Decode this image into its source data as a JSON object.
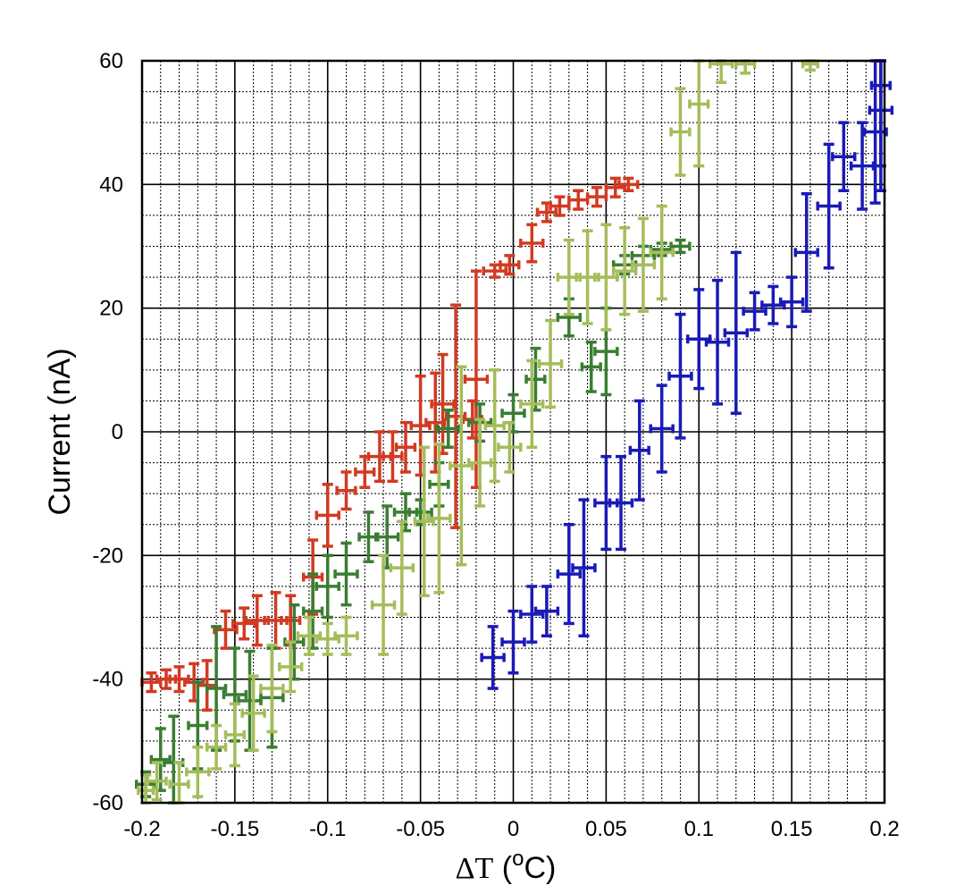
{
  "chart_data": {
    "type": "scatter",
    "title": "",
    "xlabel": {
      "delta": "ΔT",
      "open": " (",
      "sup": "o",
      "unit": "C)"
    },
    "ylabel": "Current (nA)",
    "xlim": [
      -0.2,
      0.2
    ],
    "ylim": [
      -60,
      60
    ],
    "x_ticks": [
      -0.2,
      -0.15,
      -0.1,
      -0.05,
      0,
      0.05,
      0.1,
      0.15,
      0.2
    ],
    "x_tick_labels": [
      "-0.2",
      "-0.15",
      "-0.1",
      "-0.05",
      "0",
      "0.05",
      "0.1",
      "0.15",
      "0.2"
    ],
    "y_ticks": [
      -60,
      -40,
      -20,
      0,
      20,
      40,
      60
    ],
    "y_tick_labels": [
      "-60",
      "-40",
      "-20",
      "0",
      "20",
      "40",
      "60"
    ],
    "grid": {
      "major": true,
      "minor": true,
      "minor_x_step": 0.01,
      "minor_y_step": 5
    },
    "legend": "none",
    "series": [
      {
        "color": "#d23a22",
        "points": [
          {
            "x": -0.195,
            "y": -40.5,
            "xerr": 0.005,
            "yerr": 1.5
          },
          {
            "x": -0.187,
            "y": -40.0,
            "xerr": 0.005,
            "yerr": 1.5
          },
          {
            "x": -0.18,
            "y": -40.0,
            "xerr": 0.005,
            "yerr": 2.0
          },
          {
            "x": -0.172,
            "y": -40.5,
            "xerr": 0.005,
            "yerr": 3.0
          },
          {
            "x": -0.165,
            "y": -41.0,
            "xerr": 0.005,
            "yerr": 4.0
          },
          {
            "x": -0.155,
            "y": -32.0,
            "xerr": 0.006,
            "yerr": 3.0
          },
          {
            "x": -0.145,
            "y": -31.0,
            "xerr": 0.006,
            "yerr": 2.5
          },
          {
            "x": -0.138,
            "y": -30.5,
            "xerr": 0.006,
            "yerr": 4.0
          },
          {
            "x": -0.128,
            "y": -30.5,
            "xerr": 0.006,
            "yerr": 4.5
          },
          {
            "x": -0.12,
            "y": -30.5,
            "xerr": 0.005,
            "yerr": 4.0
          },
          {
            "x": -0.108,
            "y": -23.5,
            "xerr": 0.005,
            "yerr": 6.0
          },
          {
            "x": -0.1,
            "y": -13.5,
            "xerr": 0.006,
            "yerr": 5.0
          },
          {
            "x": -0.09,
            "y": -9.5,
            "xerr": 0.005,
            "yerr": 3.0
          },
          {
            "x": -0.08,
            "y": -6.5,
            "xerr": 0.005,
            "yerr": 2.5
          },
          {
            "x": -0.072,
            "y": -4.0,
            "xerr": 0.006,
            "yerr": 4.0
          },
          {
            "x": -0.065,
            "y": -4.0,
            "xerr": 0.005,
            "yerr": 4.0
          },
          {
            "x": -0.058,
            "y": -2.5,
            "xerr": 0.005,
            "yerr": 4.0
          },
          {
            "x": -0.05,
            "y": 1.0,
            "xerr": 0.005,
            "yerr": 8.0
          },
          {
            "x": -0.042,
            "y": 1.5,
            "xerr": 0.005,
            "yerr": 8.0
          },
          {
            "x": -0.038,
            "y": 4.5,
            "xerr": 0.006,
            "yerr": 8.0
          },
          {
            "x": -0.031,
            "y": 2.5,
            "xerr": 0.005,
            "yerr": 18.0
          },
          {
            "x": -0.022,
            "y": 2.0,
            "xerr": 0.005,
            "yerr": 3.0
          },
          {
            "x": -0.02,
            "y": 8.5,
            "xerr": 0.006,
            "yerr": 17.5
          },
          {
            "x": -0.01,
            "y": 26.0,
            "xerr": 0.006,
            "yerr": 1.0
          },
          {
            "x": -0.002,
            "y": 27.0,
            "xerr": 0.005,
            "yerr": 1.5
          },
          {
            "x": 0.01,
            "y": 30.5,
            "xerr": 0.006,
            "yerr": 3.0
          },
          {
            "x": 0.018,
            "y": 35.5,
            "xerr": 0.005,
            "yerr": 1.5
          },
          {
            "x": 0.025,
            "y": 36.5,
            "xerr": 0.005,
            "yerr": 1.5
          },
          {
            "x": 0.035,
            "y": 37.5,
            "xerr": 0.005,
            "yerr": 1.5
          },
          {
            "x": 0.045,
            "y": 38.0,
            "xerr": 0.005,
            "yerr": 1.5
          },
          {
            "x": 0.055,
            "y": 39.5,
            "xerr": 0.005,
            "yerr": 1.5
          },
          {
            "x": 0.062,
            "y": 40.0,
            "xerr": 0.005,
            "yerr": 1.0
          }
        ]
      },
      {
        "color": "#3b7d32",
        "points": [
          {
            "x": -0.198,
            "y": -57.0,
            "xerr": 0.005,
            "yerr": 2.0
          },
          {
            "x": -0.19,
            "y": -53.0,
            "xerr": 0.005,
            "yerr": 5.0
          },
          {
            "x": -0.183,
            "y": -53.5,
            "xerr": 0.005,
            "yerr": 7.5
          },
          {
            "x": -0.17,
            "y": -47.5,
            "xerr": 0.005,
            "yerr": 7.0
          },
          {
            "x": -0.16,
            "y": -41.5,
            "xerr": 0.005,
            "yerr": 10.0
          },
          {
            "x": -0.15,
            "y": -42.5,
            "xerr": 0.006,
            "yerr": 7.5
          },
          {
            "x": -0.142,
            "y": -43.5,
            "xerr": 0.006,
            "yerr": 8.0
          },
          {
            "x": -0.13,
            "y": -43.0,
            "xerr": 0.006,
            "yerr": 8.0
          },
          {
            "x": -0.118,
            "y": -34.0,
            "xerr": 0.005,
            "yerr": 6.0
          },
          {
            "x": -0.108,
            "y": -29.0,
            "xerr": 0.005,
            "yerr": 6.0
          },
          {
            "x": -0.1,
            "y": -25.0,
            "xerr": 0.006,
            "yerr": 5.0
          },
          {
            "x": -0.09,
            "y": -23.0,
            "xerr": 0.006,
            "yerr": 5.0
          },
          {
            "x": -0.078,
            "y": -17.0,
            "xerr": 0.005,
            "yerr": 4.0
          },
          {
            "x": -0.068,
            "y": -17.0,
            "xerr": 0.006,
            "yerr": 5.0
          },
          {
            "x": -0.058,
            "y": -13.0,
            "xerr": 0.006,
            "yerr": 3.0
          },
          {
            "x": -0.05,
            "y": -13.0,
            "xerr": 0.006,
            "yerr": 2.0
          },
          {
            "x": -0.04,
            "y": -8.5,
            "xerr": 0.005,
            "yerr": 3.5
          },
          {
            "x": -0.035,
            "y": 0.5,
            "xerr": 0.006,
            "yerr": 3.0
          },
          {
            "x": -0.018,
            "y": 1.5,
            "xerr": 0.006,
            "yerr": 3.0
          },
          {
            "x": 0.0,
            "y": 3.0,
            "xerr": 0.006,
            "yerr": 3.0
          },
          {
            "x": 0.012,
            "y": 8.5,
            "xerr": 0.005,
            "yerr": 5.0
          },
          {
            "x": 0.03,
            "y": 18.5,
            "xerr": 0.006,
            "yerr": 3.0
          },
          {
            "x": 0.042,
            "y": 10.5,
            "xerr": 0.005,
            "yerr": 4.0
          },
          {
            "x": 0.05,
            "y": 13.0,
            "xerr": 0.006,
            "yerr": 7.0
          },
          {
            "x": 0.06,
            "y": 27.0,
            "xerr": 0.006,
            "yerr": 1.5
          },
          {
            "x": 0.07,
            "y": 28.5,
            "xerr": 0.006,
            "yerr": 1.5
          },
          {
            "x": 0.08,
            "y": 29.5,
            "xerr": 0.006,
            "yerr": 1.0
          },
          {
            "x": 0.09,
            "y": 30.0,
            "xerr": 0.005,
            "yerr": 1.0
          }
        ]
      },
      {
        "color": "#a5bd5a",
        "points": [
          {
            "x": -0.198,
            "y": -58.0,
            "xerr": 0.004,
            "yerr": 2.5
          },
          {
            "x": -0.192,
            "y": -56.5,
            "xerr": 0.005,
            "yerr": 3.0
          },
          {
            "x": -0.18,
            "y": -57.0,
            "xerr": 0.005,
            "yerr": 3.5
          },
          {
            "x": -0.17,
            "y": -55.0,
            "xerr": 0.006,
            "yerr": 4.0
          },
          {
            "x": -0.16,
            "y": -51.0,
            "xerr": 0.005,
            "yerr": 3.5
          },
          {
            "x": -0.15,
            "y": -49.0,
            "xerr": 0.005,
            "yerr": 5.0
          },
          {
            "x": -0.14,
            "y": -45.5,
            "xerr": 0.006,
            "yerr": 6.0
          },
          {
            "x": -0.13,
            "y": -41.5,
            "xerr": 0.006,
            "yerr": 7.0
          },
          {
            "x": -0.12,
            "y": -38.0,
            "xerr": 0.006,
            "yerr": 4.0
          },
          {
            "x": -0.11,
            "y": -33.0,
            "xerr": 0.006,
            "yerr": 3.0
          },
          {
            "x": -0.1,
            "y": -33.5,
            "xerr": 0.006,
            "yerr": 2.5
          },
          {
            "x": -0.09,
            "y": -33.0,
            "xerr": 0.006,
            "yerr": 3.0
          },
          {
            "x": -0.07,
            "y": -28.0,
            "xerr": 0.006,
            "yerr": 8.0
          },
          {
            "x": -0.06,
            "y": -22.0,
            "xerr": 0.006,
            "yerr": 7.5
          },
          {
            "x": -0.048,
            "y": -14.5,
            "xerr": 0.005,
            "yerr": 12.0
          },
          {
            "x": -0.04,
            "y": -14.0,
            "xerr": 0.006,
            "yerr": 12.0
          },
          {
            "x": -0.028,
            "y": -5.5,
            "xerr": 0.006,
            "yerr": 16.0
          },
          {
            "x": -0.018,
            "y": -5.0,
            "xerr": 0.006,
            "yerr": 7.0
          },
          {
            "x": -0.01,
            "y": 1.0,
            "xerr": 0.005,
            "yerr": 9.0
          },
          {
            "x": -0.002,
            "y": -2.5,
            "xerr": 0.006,
            "yerr": 4.0
          },
          {
            "x": 0.01,
            "y": 4.5,
            "xerr": 0.006,
            "yerr": 7.0
          },
          {
            "x": 0.02,
            "y": 11.0,
            "xerr": 0.006,
            "yerr": 7.0
          },
          {
            "x": 0.03,
            "y": 25.0,
            "xerr": 0.006,
            "yerr": 6.0
          },
          {
            "x": 0.04,
            "y": 25.0,
            "xerr": 0.006,
            "yerr": 7.5
          },
          {
            "x": 0.05,
            "y": 25.0,
            "xerr": 0.006,
            "yerr": 8.5
          },
          {
            "x": 0.06,
            "y": 26.0,
            "xerr": 0.006,
            "yerr": 7.0
          },
          {
            "x": 0.07,
            "y": 27.0,
            "xerr": 0.006,
            "yerr": 7.5
          },
          {
            "x": 0.08,
            "y": 29.0,
            "xerr": 0.006,
            "yerr": 7.5
          },
          {
            "x": 0.09,
            "y": 48.5,
            "xerr": 0.005,
            "yerr": 7.0
          },
          {
            "x": 0.1,
            "y": 53.0,
            "xerr": 0.005,
            "yerr": 10.0
          },
          {
            "x": 0.112,
            "y": 59.5,
            "xerr": 0.006,
            "yerr": 3.0
          },
          {
            "x": 0.125,
            "y": 59.5,
            "xerr": 0.005,
            "yerr": 1.5
          },
          {
            "x": 0.16,
            "y": 59.5,
            "xerr": 0.004,
            "yerr": 1.0
          }
        ]
      },
      {
        "color": "#1a1ab8",
        "points": [
          {
            "x": -0.011,
            "y": -36.5,
            "xerr": 0.006,
            "yerr": 5.0
          },
          {
            "x": 0.0,
            "y": -34.0,
            "xerr": 0.006,
            "yerr": 5.0
          },
          {
            "x": 0.01,
            "y": -29.5,
            "xerr": 0.006,
            "yerr": 4.5
          },
          {
            "x": 0.018,
            "y": -29.0,
            "xerr": 0.006,
            "yerr": 4.0
          },
          {
            "x": 0.03,
            "y": -23.0,
            "xerr": 0.006,
            "yerr": 8.0
          },
          {
            "x": 0.038,
            "y": -22.0,
            "xerr": 0.006,
            "yerr": 11.0
          },
          {
            "x": 0.05,
            "y": -11.5,
            "xerr": 0.006,
            "yerr": 7.5
          },
          {
            "x": 0.058,
            "y": -11.5,
            "xerr": 0.006,
            "yerr": 7.5
          },
          {
            "x": 0.068,
            "y": -3.0,
            "xerr": 0.005,
            "yerr": 8.0
          },
          {
            "x": 0.08,
            "y": 0.5,
            "xerr": 0.006,
            "yerr": 7.0
          },
          {
            "x": 0.09,
            "y": 9.0,
            "xerr": 0.006,
            "yerr": 10.0
          },
          {
            "x": 0.1,
            "y": 15.0,
            "xerr": 0.006,
            "yerr": 8.0
          },
          {
            "x": 0.11,
            "y": 14.5,
            "xerr": 0.006,
            "yerr": 10.0
          },
          {
            "x": 0.12,
            "y": 16.0,
            "xerr": 0.006,
            "yerr": 13.0
          },
          {
            "x": 0.13,
            "y": 19.5,
            "xerr": 0.006,
            "yerr": 3.0
          },
          {
            "x": 0.14,
            "y": 20.5,
            "xerr": 0.006,
            "yerr": 3.0
          },
          {
            "x": 0.15,
            "y": 21.0,
            "xerr": 0.006,
            "yerr": 4.0
          },
          {
            "x": 0.158,
            "y": 29.0,
            "xerr": 0.006,
            "yerr": 9.5
          },
          {
            "x": 0.17,
            "y": 36.5,
            "xerr": 0.006,
            "yerr": 10.0
          },
          {
            "x": 0.178,
            "y": 44.5,
            "xerr": 0.006,
            "yerr": 5.5
          },
          {
            "x": 0.188,
            "y": 43.0,
            "xerr": 0.006,
            "yerr": 7.0
          },
          {
            "x": 0.195,
            "y": 48.5,
            "xerr": 0.006,
            "yerr": 11.5
          },
          {
            "x": 0.198,
            "y": 52.0,
            "xerr": 0.006,
            "yerr": 13.0
          },
          {
            "x": 0.198,
            "y": 56.0,
            "xerr": 0.005,
            "yerr": 13.0
          }
        ]
      }
    ]
  }
}
